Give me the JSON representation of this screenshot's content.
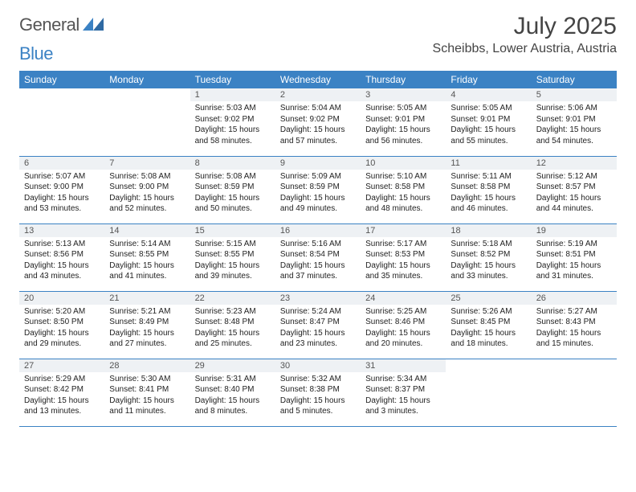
{
  "brand": {
    "word1": "General",
    "word2": "Blue"
  },
  "title": "July 2025",
  "location": "Scheibbs, Lower Austria, Austria",
  "colors": {
    "accent": "#3b82c4",
    "header_bg": "#3b82c4",
    "header_fg": "#ffffff",
    "daynum_bg": "#eef1f4",
    "text": "#222222",
    "border": "#3b82c4"
  },
  "day_headers": [
    "Sunday",
    "Monday",
    "Tuesday",
    "Wednesday",
    "Thursday",
    "Friday",
    "Saturday"
  ],
  "weeks": [
    [
      null,
      null,
      {
        "n": "1",
        "sr": "5:03 AM",
        "ss": "9:02 PM",
        "dl": "15 hours and 58 minutes."
      },
      {
        "n": "2",
        "sr": "5:04 AM",
        "ss": "9:02 PM",
        "dl": "15 hours and 57 minutes."
      },
      {
        "n": "3",
        "sr": "5:05 AM",
        "ss": "9:01 PM",
        "dl": "15 hours and 56 minutes."
      },
      {
        "n": "4",
        "sr": "5:05 AM",
        "ss": "9:01 PM",
        "dl": "15 hours and 55 minutes."
      },
      {
        "n": "5",
        "sr": "5:06 AM",
        "ss": "9:01 PM",
        "dl": "15 hours and 54 minutes."
      }
    ],
    [
      {
        "n": "6",
        "sr": "5:07 AM",
        "ss": "9:00 PM",
        "dl": "15 hours and 53 minutes."
      },
      {
        "n": "7",
        "sr": "5:08 AM",
        "ss": "9:00 PM",
        "dl": "15 hours and 52 minutes."
      },
      {
        "n": "8",
        "sr": "5:08 AM",
        "ss": "8:59 PM",
        "dl": "15 hours and 50 minutes."
      },
      {
        "n": "9",
        "sr": "5:09 AM",
        "ss": "8:59 PM",
        "dl": "15 hours and 49 minutes."
      },
      {
        "n": "10",
        "sr": "5:10 AM",
        "ss": "8:58 PM",
        "dl": "15 hours and 48 minutes."
      },
      {
        "n": "11",
        "sr": "5:11 AM",
        "ss": "8:58 PM",
        "dl": "15 hours and 46 minutes."
      },
      {
        "n": "12",
        "sr": "5:12 AM",
        "ss": "8:57 PM",
        "dl": "15 hours and 44 minutes."
      }
    ],
    [
      {
        "n": "13",
        "sr": "5:13 AM",
        "ss": "8:56 PM",
        "dl": "15 hours and 43 minutes."
      },
      {
        "n": "14",
        "sr": "5:14 AM",
        "ss": "8:55 PM",
        "dl": "15 hours and 41 minutes."
      },
      {
        "n": "15",
        "sr": "5:15 AM",
        "ss": "8:55 PM",
        "dl": "15 hours and 39 minutes."
      },
      {
        "n": "16",
        "sr": "5:16 AM",
        "ss": "8:54 PM",
        "dl": "15 hours and 37 minutes."
      },
      {
        "n": "17",
        "sr": "5:17 AM",
        "ss": "8:53 PM",
        "dl": "15 hours and 35 minutes."
      },
      {
        "n": "18",
        "sr": "5:18 AM",
        "ss": "8:52 PM",
        "dl": "15 hours and 33 minutes."
      },
      {
        "n": "19",
        "sr": "5:19 AM",
        "ss": "8:51 PM",
        "dl": "15 hours and 31 minutes."
      }
    ],
    [
      {
        "n": "20",
        "sr": "5:20 AM",
        "ss": "8:50 PM",
        "dl": "15 hours and 29 minutes."
      },
      {
        "n": "21",
        "sr": "5:21 AM",
        "ss": "8:49 PM",
        "dl": "15 hours and 27 minutes."
      },
      {
        "n": "22",
        "sr": "5:23 AM",
        "ss": "8:48 PM",
        "dl": "15 hours and 25 minutes."
      },
      {
        "n": "23",
        "sr": "5:24 AM",
        "ss": "8:47 PM",
        "dl": "15 hours and 23 minutes."
      },
      {
        "n": "24",
        "sr": "5:25 AM",
        "ss": "8:46 PM",
        "dl": "15 hours and 20 minutes."
      },
      {
        "n": "25",
        "sr": "5:26 AM",
        "ss": "8:45 PM",
        "dl": "15 hours and 18 minutes."
      },
      {
        "n": "26",
        "sr": "5:27 AM",
        "ss": "8:43 PM",
        "dl": "15 hours and 15 minutes."
      }
    ],
    [
      {
        "n": "27",
        "sr": "5:29 AM",
        "ss": "8:42 PM",
        "dl": "15 hours and 13 minutes."
      },
      {
        "n": "28",
        "sr": "5:30 AM",
        "ss": "8:41 PM",
        "dl": "15 hours and 11 minutes."
      },
      {
        "n": "29",
        "sr": "5:31 AM",
        "ss": "8:40 PM",
        "dl": "15 hours and 8 minutes."
      },
      {
        "n": "30",
        "sr": "5:32 AM",
        "ss": "8:38 PM",
        "dl": "15 hours and 5 minutes."
      },
      {
        "n": "31",
        "sr": "5:34 AM",
        "ss": "8:37 PM",
        "dl": "15 hours and 3 minutes."
      },
      null,
      null
    ]
  ],
  "labels": {
    "sunrise": "Sunrise: ",
    "sunset": "Sunset: ",
    "daylight": "Daylight: "
  }
}
